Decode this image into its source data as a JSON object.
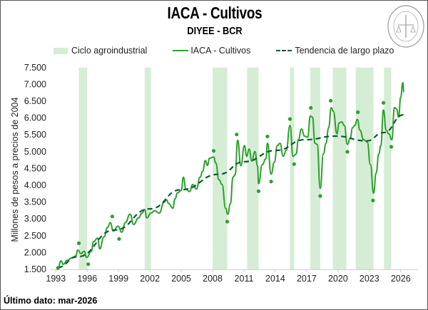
{
  "title": "IACA - Cultivos",
  "subtitle": "DIYEE - BCR",
  "footer": "Último dato: mar-2026",
  "logo_text": "BOLSA DE COMERCIO DE ROSARIO",
  "colors": {
    "band": "#d5edd4",
    "line": "#2ca02c",
    "trend": "#0b5a32",
    "dots": "#2ca02c"
  },
  "chart_data": {
    "type": "line",
    "title": "IACA - Cultivos",
    "ylabel": "Millones de pesos a precios de 2004",
    "xlabel": "",
    "ylim": [
      1500,
      7500
    ],
    "xlim": [
      1993,
      2026.5
    ],
    "yticks": [
      "1.500",
      "2.000",
      "2.500",
      "3.000",
      "3.500",
      "4.000",
      "4.500",
      "5.000",
      "5.500",
      "6.000",
      "6.500",
      "7.000",
      "7.500"
    ],
    "ytick_values": [
      1500,
      2000,
      2500,
      3000,
      3500,
      4000,
      4500,
      5000,
      5500,
      6000,
      6500,
      7000,
      7500
    ],
    "xticks": [
      "1993",
      "1996",
      "1999",
      "2002",
      "2005",
      "2008",
      "2011",
      "2014",
      "2017",
      "2020",
      "2023",
      "2026"
    ],
    "grid": false,
    "legend_position": "top",
    "legend": [
      "Ciclo agroindustrial",
      "IACA - Cultivos",
      "Tendencia de largo plazo"
    ],
    "bands": [
      [
        1995.2,
        1996.0
      ],
      [
        2001.5,
        2002.1
      ],
      [
        2008.0,
        2009.4
      ],
      [
        2011.3,
        2012.4
      ],
      [
        2015.4,
        2015.8
      ],
      [
        2017.35,
        2018.3
      ],
      [
        2019.5,
        2020.8
      ],
      [
        2021.7,
        2023.4
      ],
      [
        2024.4,
        2025.1
      ]
    ],
    "series": [
      {
        "name": "IACA - Cultivos",
        "points": [
          [
            1993.2,
            1542
          ],
          [
            1993.5,
            1754
          ],
          [
            1993.7,
            1650
          ],
          [
            1994.1,
            1769
          ],
          [
            1994.5,
            1840
          ],
          [
            1994.9,
            1897
          ],
          [
            1995.1,
            2075
          ],
          [
            1995.4,
            1968
          ],
          [
            1995.7,
            2040
          ],
          [
            1995.95,
            1855
          ],
          [
            1996.4,
            2040
          ],
          [
            1996.6,
            2325
          ],
          [
            1997.0,
            2430
          ],
          [
            1997.2,
            2110
          ],
          [
            1997.6,
            2465
          ],
          [
            1997.95,
            2750
          ],
          [
            1998.2,
            2890
          ],
          [
            1998.5,
            2640
          ],
          [
            1998.95,
            2785
          ],
          [
            1999.3,
            2605
          ],
          [
            1999.65,
            2890
          ],
          [
            2000.1,
            3140
          ],
          [
            2000.45,
            2835
          ],
          [
            2000.9,
            3030
          ],
          [
            2001.25,
            3175
          ],
          [
            2001.5,
            3280
          ],
          [
            2001.7,
            3030
          ],
          [
            2002.1,
            3175
          ],
          [
            2002.45,
            3245
          ],
          [
            2002.9,
            3175
          ],
          [
            2003.35,
            3495
          ],
          [
            2003.6,
            3565
          ],
          [
            2003.8,
            3455
          ],
          [
            2004.2,
            3315
          ],
          [
            2004.4,
            3600
          ],
          [
            2004.65,
            3775
          ],
          [
            2005.0,
            3850
          ],
          [
            2005.2,
            4240
          ],
          [
            2005.45,
            3885
          ],
          [
            2005.8,
            3815
          ],
          [
            2006.1,
            4025
          ],
          [
            2006.45,
            3885
          ],
          [
            2006.8,
            4240
          ],
          [
            2007.05,
            4415
          ],
          [
            2007.3,
            4735
          ],
          [
            2007.5,
            4590
          ],
          [
            2007.7,
            4805
          ],
          [
            2008.1,
            4840
          ],
          [
            2008.3,
            4665
          ],
          [
            2008.6,
            4170
          ],
          [
            2008.9,
            4025
          ],
          [
            2009.25,
            3315
          ],
          [
            2009.45,
            3140
          ],
          [
            2009.7,
            3455
          ],
          [
            2009.95,
            4240
          ],
          [
            2010.15,
            4310
          ],
          [
            2010.4,
            5340
          ],
          [
            2010.7,
            4579
          ],
          [
            2011.05,
            5180
          ],
          [
            2011.25,
            4862
          ],
          [
            2011.5,
            5075
          ],
          [
            2011.75,
            4720
          ],
          [
            2012.05,
            5004
          ],
          [
            2012.3,
            4579
          ],
          [
            2012.4,
            4049
          ],
          [
            2012.75,
            4614
          ],
          [
            2013.1,
            4790
          ],
          [
            2013.25,
            5250
          ],
          [
            2013.6,
            4330
          ],
          [
            2013.9,
            4684
          ],
          [
            2014.2,
            5180
          ],
          [
            2014.45,
            5250
          ],
          [
            2014.75,
            4862
          ],
          [
            2015.05,
            5040
          ],
          [
            2015.4,
            5780
          ],
          [
            2015.7,
            4862
          ],
          [
            2016.0,
            4933
          ],
          [
            2016.2,
            5356
          ],
          [
            2016.5,
            5674
          ],
          [
            2016.8,
            5462
          ],
          [
            2017.1,
            5427
          ],
          [
            2017.35,
            6062
          ],
          [
            2017.55,
            6027
          ],
          [
            2017.8,
            5250
          ],
          [
            2018.0,
            5215
          ],
          [
            2018.3,
            3909
          ],
          [
            2018.6,
            4933
          ],
          [
            2018.85,
            5250
          ],
          [
            2019.1,
            5710
          ],
          [
            2019.35,
            6310
          ],
          [
            2019.55,
            6200
          ],
          [
            2019.9,
            5532
          ],
          [
            2020.1,
            5850
          ],
          [
            2020.35,
            5885
          ],
          [
            2020.6,
            5780
          ],
          [
            2020.9,
            5215
          ],
          [
            2021.15,
            5390
          ],
          [
            2021.4,
            5710
          ],
          [
            2021.6,
            5780
          ],
          [
            2021.85,
            5956
          ],
          [
            2022.1,
            5640
          ],
          [
            2022.45,
            5356
          ],
          [
            2022.8,
            5286
          ],
          [
            2023.1,
            4614
          ],
          [
            2023.4,
            3767
          ],
          [
            2023.65,
            4367
          ],
          [
            2023.9,
            4933
          ],
          [
            2024.1,
            5180
          ],
          [
            2024.35,
            6240
          ],
          [
            2024.6,
            5640
          ],
          [
            2024.85,
            5532
          ],
          [
            2025.15,
            5356
          ],
          [
            2025.4,
            6310
          ],
          [
            2025.6,
            6275
          ],
          [
            2025.8,
            6027
          ],
          [
            2026.0,
            6627
          ],
          [
            2026.2,
            7051
          ],
          [
            2026.3,
            6770
          ]
        ]
      },
      {
        "name": "Tendencia de largo plazo",
        "points": [
          [
            1993.2,
            1560
          ],
          [
            1995,
            1870
          ],
          [
            1998.65,
            2672
          ],
          [
            2002,
            3300
          ],
          [
            2005,
            3870
          ],
          [
            2008.65,
            4330
          ],
          [
            2011,
            4700
          ],
          [
            2014.1,
            5038
          ],
          [
            2016.85,
            5356
          ],
          [
            2019.8,
            5462
          ],
          [
            2022.75,
            5320
          ],
          [
            2024.35,
            5566
          ],
          [
            2026.3,
            6097
          ]
        ]
      }
    ],
    "turning_points": [
      [
        1993.2,
        1542
      ],
      [
        1995.2,
        2278
      ],
      [
        1996.1,
        1655
      ],
      [
        1998.4,
        3074
      ],
      [
        1999.05,
        2405
      ],
      [
        2008.1,
        5024
      ],
      [
        2009.4,
        2919
      ],
      [
        2010.3,
        5511
      ],
      [
        2012.4,
        3824
      ],
      [
        2013.25,
        5452
      ],
      [
        2013.6,
        4112
      ],
      [
        2015.4,
        5970
      ],
      [
        2015.8,
        4629
      ],
      [
        2017.4,
        6303
      ],
      [
        2018.3,
        3682
      ],
      [
        2019.3,
        6515
      ],
      [
        2020.9,
        4996
      ],
      [
        2021.9,
        6174
      ],
      [
        2023.35,
        3549
      ],
      [
        2024.35,
        6451
      ],
      [
        2025.1,
        5144
      ]
    ]
  }
}
